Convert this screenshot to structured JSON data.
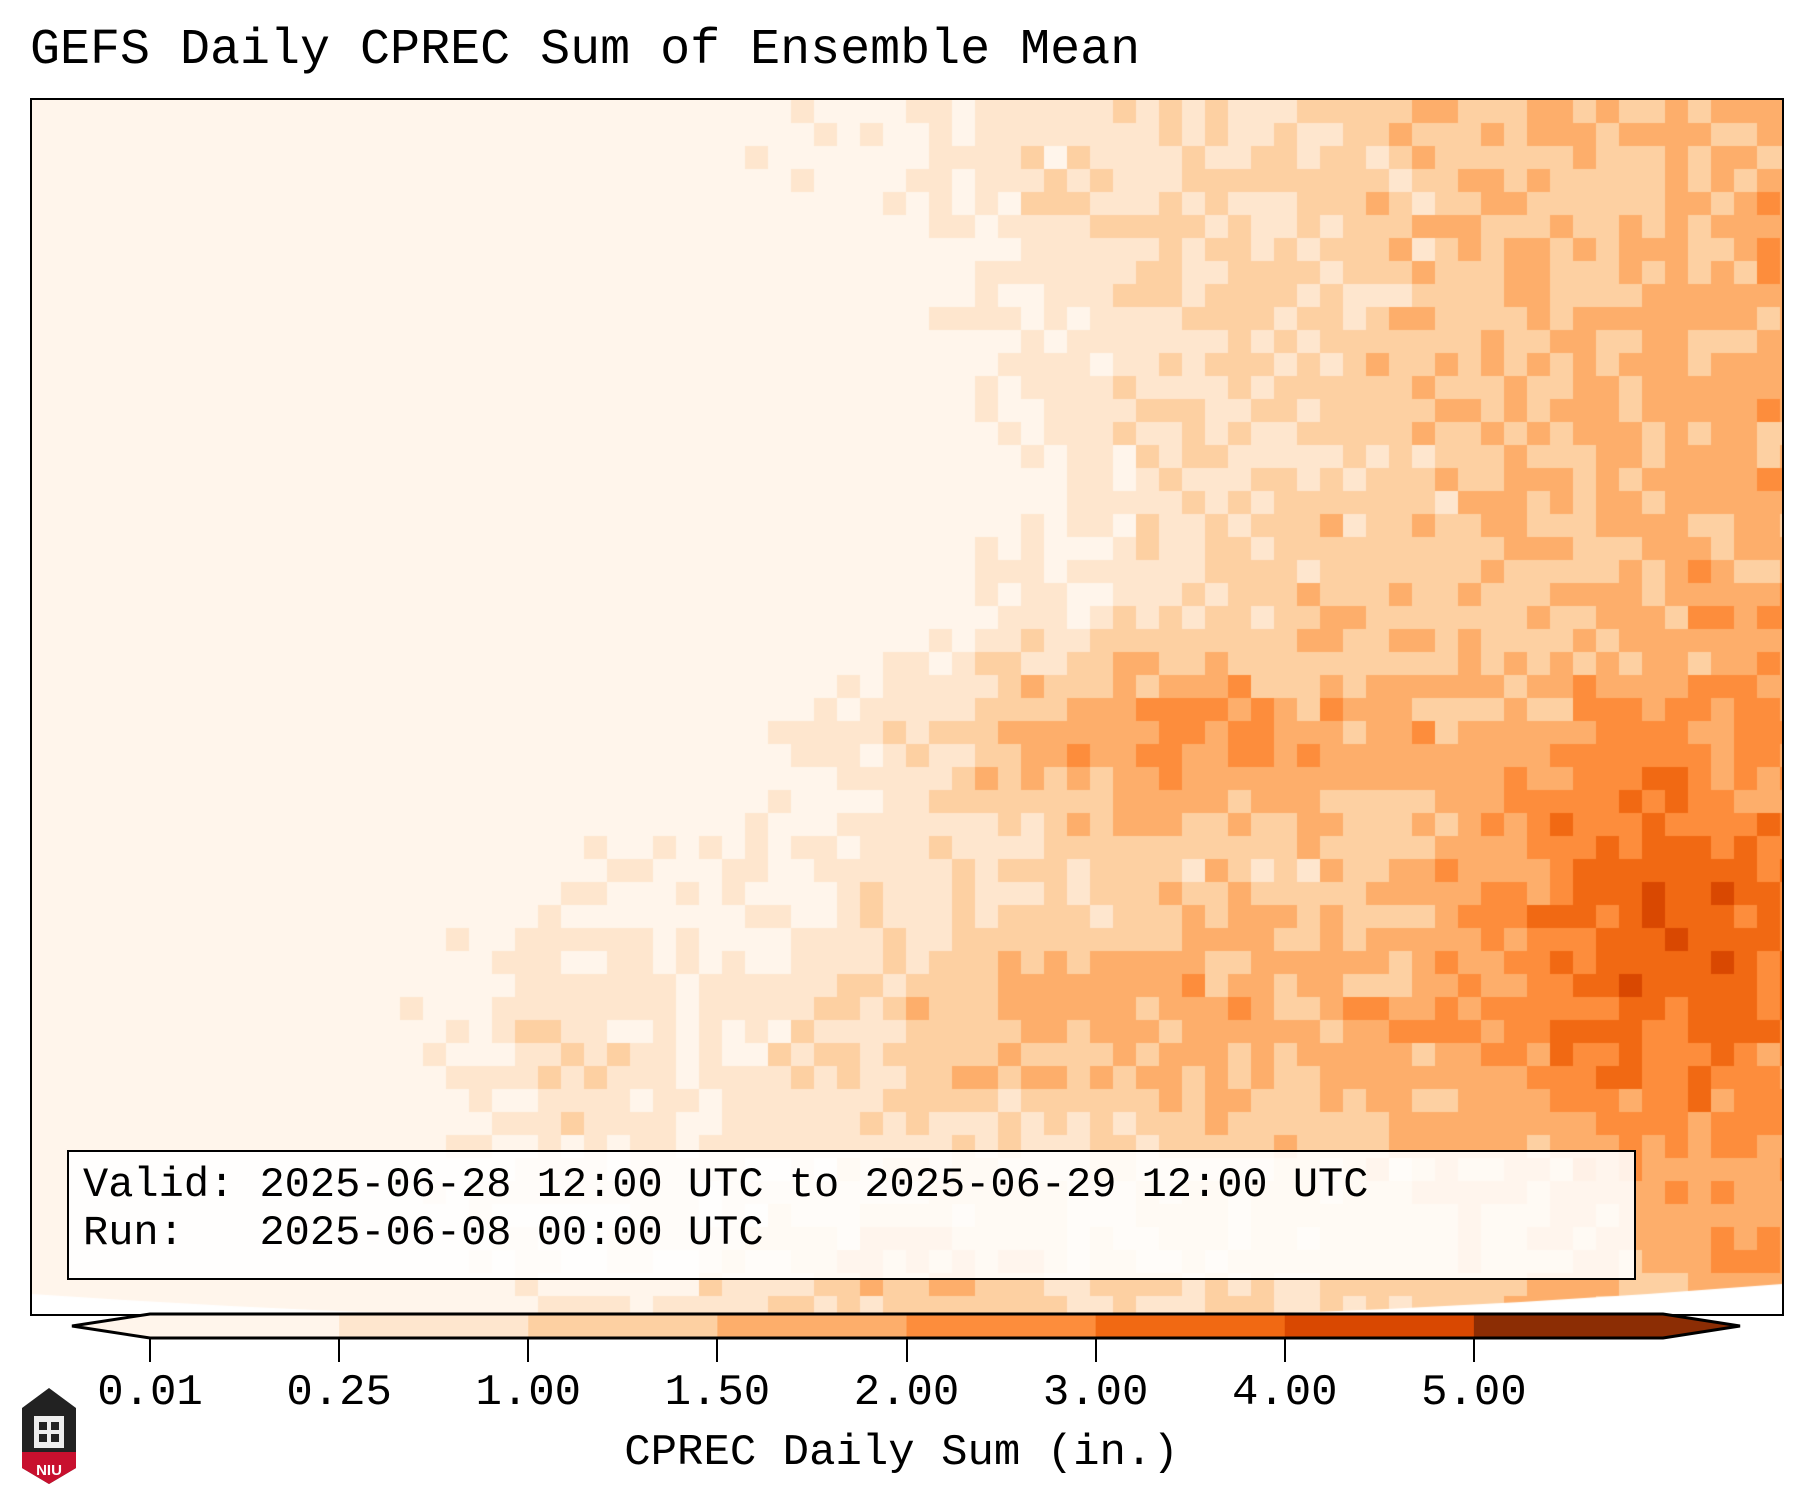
{
  "title": "GEFS Daily CPREC Sum of Ensemble Mean",
  "legend": {
    "valid_label": "Valid:",
    "valid_value": "2025-06-28 12:00 UTC to 2025-06-29 12:00 UTC",
    "run_label": "Run:",
    "run_value": "2025-06-08 00:00 UTC"
  },
  "colorbar": {
    "label": "CPREC Daily Sum (in.)",
    "ticks": [
      "0.01",
      "0.25",
      "1.00",
      "1.50",
      "2.00",
      "3.00",
      "4.00",
      "5.00"
    ],
    "colors": [
      "#fff5eb",
      "#fee6ce",
      "#fdd0a2",
      "#fdae6b",
      "#fd8d3c",
      "#f16913",
      "#d94801",
      "#8c2d04"
    ],
    "extend": "both"
  },
  "logo": {
    "text": "NIU"
  }
}
